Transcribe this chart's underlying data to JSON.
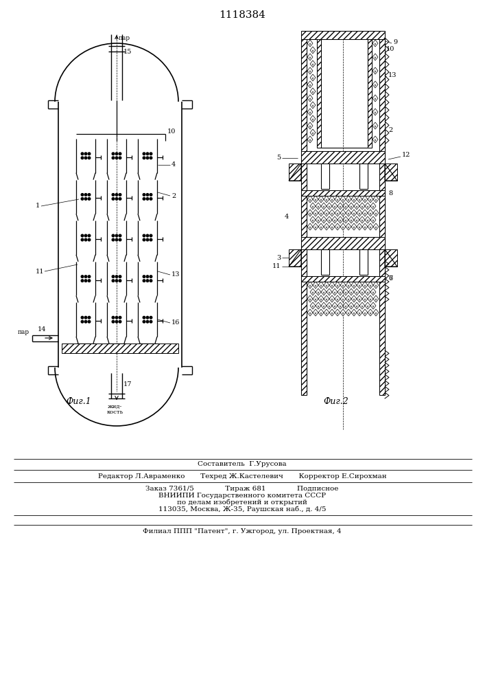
{
  "title": "1118384",
  "background_color": "#ffffff",
  "line_color": "#000000",
  "fig1_caption": "Фиг.1",
  "fig2_caption": "Фиг.2",
  "footer_lines": [
    "Составитель  Г.Урусова",
    "Редактор Л.Авраменко       Техред Ж.Кастелевич       Корректор Е.Сирохман",
    "Заказ 7361/5              Тираж 681              Подписное",
    "ВНИИПИ Государственного комитета СССР",
    "по делам изобретений и открытий",
    "113035, Москва, Ж-35, Раушская наб., д. 4/5",
    "Филиал ППП \"Патент\", г. Ужгород, ул. Проектная, 4"
  ]
}
